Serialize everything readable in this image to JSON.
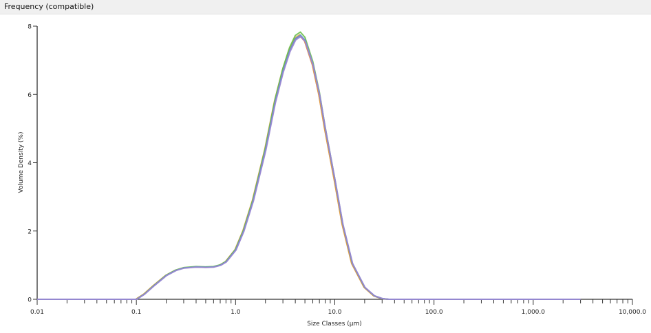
{
  "panel": {
    "title": "Frequency (compatible)"
  },
  "chart_data": {
    "type": "line",
    "xlabel": "Size Classes (µm)",
    "ylabel": "Volume Density (%)",
    "x_scale": "log",
    "xlim": [
      0.01,
      10000
    ],
    "ylim": [
      0,
      8
    ],
    "x_ticks": [
      0.01,
      0.1,
      1.0,
      10.0,
      100.0,
      1000.0,
      10000.0
    ],
    "x_tick_labels": [
      "0.01",
      "0.1",
      "1.0",
      "10.0",
      "100.0",
      "1,000.0",
      "10,000.0"
    ],
    "y_ticks": [
      0,
      2,
      4,
      6,
      8
    ],
    "y_tick_labels": [
      "0",
      "2",
      "4",
      "6",
      "8"
    ],
    "grid": false,
    "base": {
      "x": [
        0.01,
        0.1,
        0.12,
        0.15,
        0.2,
        0.25,
        0.3,
        0.4,
        0.5,
        0.6,
        0.7,
        0.8,
        1.0,
        1.2,
        1.5,
        2.0,
        2.5,
        3.0,
        3.5,
        4.0,
        4.5,
        5.0,
        6.0,
        7.0,
        8.0,
        10,
        12,
        15,
        20,
        25,
        30,
        35,
        3000
      ],
      "y": [
        0,
        0,
        0.15,
        0.4,
        0.7,
        0.85,
        0.92,
        0.95,
        0.94,
        0.95,
        1.0,
        1.1,
        1.45,
        2.0,
        2.9,
        4.4,
        5.8,
        6.7,
        7.3,
        7.65,
        7.75,
        7.6,
        6.9,
        6.0,
        5.0,
        3.5,
        2.2,
        1.05,
        0.35,
        0.1,
        0.02,
        0,
        0
      ]
    },
    "series": [
      {
        "color": "#e07a6a",
        "scale": 0.995,
        "shift": 0.99
      },
      {
        "color": "#e0a040",
        "scale": 1.0,
        "shift": 0.985
      },
      {
        "color": "#6abf4b",
        "scale": 1.01,
        "shift": 1.0
      },
      {
        "color": "#5b8fd6",
        "scale": 0.998,
        "shift": 1.005
      },
      {
        "color": "#9a86d0",
        "scale": 0.993,
        "shift": 1.01
      }
    ]
  }
}
